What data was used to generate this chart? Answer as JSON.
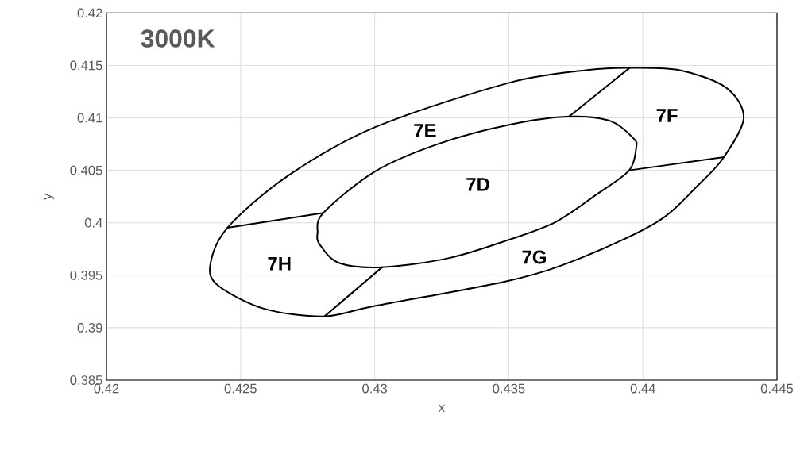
{
  "chart_data": {
    "type": "line",
    "title": "3000K",
    "xlabel": "x",
    "ylabel": "y",
    "xlim": [
      0.42,
      0.445
    ],
    "ylim": [
      0.385,
      0.42
    ],
    "xticks": [
      0.42,
      0.425,
      0.43,
      0.435,
      0.44,
      0.445
    ],
    "yticks": [
      0.385,
      0.39,
      0.395,
      0.4,
      0.405,
      0.41,
      0.415,
      0.42
    ],
    "grid": true,
    "marker": "none",
    "line_style": "solid",
    "series": [
      {
        "color": "#000000",
        "x": [
          0.43725,
          0.4395
        ],
        "values": [
          0.41013,
          0.41476
        ]
      },
      {
        "color": "#000000",
        "x": [
          0.43949,
          0.44302
        ],
        "values": [
          0.405,
          0.40626
        ]
      },
      {
        "color": "#000000",
        "x": [
          0.42813,
          0.43028
        ],
        "values": [
          0.39108,
          0.39577
        ]
      },
      {
        "color": "#000000",
        "x": [
          0.42451,
          0.42809
        ],
        "values": [
          0.39952,
          0.40095
        ]
      }
    ],
    "annotations": [
      "7D",
      "7E",
      "7F",
      "7G",
      "7H"
    ]
  }
}
